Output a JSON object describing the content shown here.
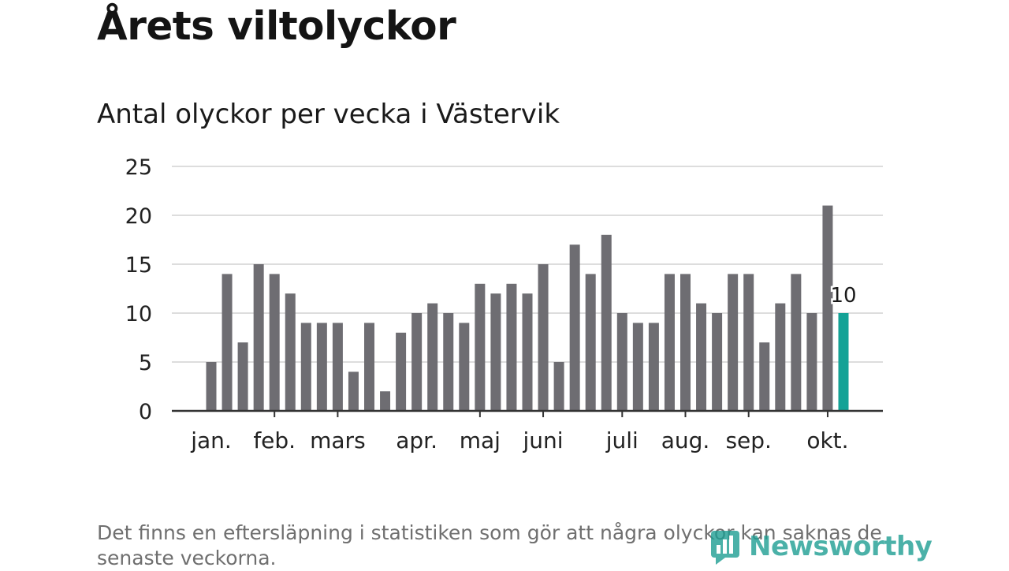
{
  "header": {
    "title": "Årets viltolyckor",
    "subtitle": "Antal olyckor per vecka i Västervik"
  },
  "footer": {
    "note": "Det finns en eftersläpning i statistiken som gör att några olyckor kan saknas de senaste veckorna.",
    "brand": "Newsworthy"
  },
  "colors": {
    "bar": "#6e6d72",
    "highlight": "#14a296",
    "grid": "#dddddd",
    "axis": "#333333",
    "brand": "#1f9e93"
  },
  "chart_data": {
    "type": "bar",
    "title": "Antal olyckor per vecka i Västervik",
    "xlabel": "",
    "ylabel": "",
    "ylim": [
      0,
      25
    ],
    "yticks": [
      0,
      5,
      10,
      15,
      20,
      25
    ],
    "grid": true,
    "values": [
      5,
      14,
      7,
      15,
      14,
      12,
      9,
      9,
      9,
      4,
      9,
      2,
      8,
      10,
      11,
      10,
      9,
      13,
      12,
      13,
      12,
      15,
      5,
      17,
      14,
      18,
      10,
      9,
      9,
      14,
      14,
      11,
      10,
      14,
      14,
      7,
      11,
      14,
      10,
      21,
      10
    ],
    "highlight_index": 40,
    "highlight_label": "10",
    "month_labels": [
      {
        "label": "jan.",
        "week": 1
      },
      {
        "label": "feb.",
        "week": 5
      },
      {
        "label": "mars",
        "week": 9
      },
      {
        "label": "apr.",
        "week": 14
      },
      {
        "label": "maj",
        "week": 18
      },
      {
        "label": "juni",
        "week": 22
      },
      {
        "label": "juli",
        "week": 27
      },
      {
        "label": "aug.",
        "week": 31
      },
      {
        "label": "sep.",
        "week": 35
      },
      {
        "label": "okt.",
        "week": 40
      }
    ],
    "month_ticks": [
      4.5,
      8.5,
      17.5,
      21.5,
      26.5,
      30.5,
      34.5,
      39.5
    ]
  }
}
